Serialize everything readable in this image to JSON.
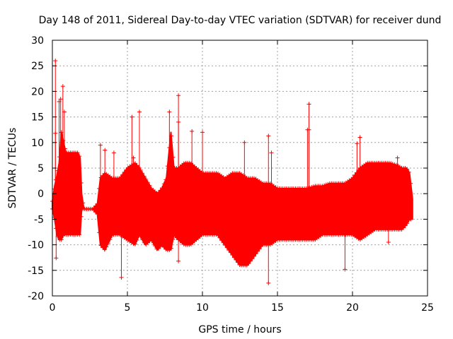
{
  "chart_data": {
    "type": "scatter",
    "title": "Day 148 of 2011, Sidereal Day-to-day VTEC variation (SDTVAR) for receiver dund",
    "xlabel": "GPS time / hours",
    "ylabel": "SDTVAR / TECUs",
    "xlim": [
      0,
      25
    ],
    "ylim": [
      -20,
      30
    ],
    "xticks": [
      0,
      5,
      10,
      15,
      20,
      25
    ],
    "yticks": [
      -20,
      -15,
      -10,
      -5,
      0,
      5,
      10,
      15,
      20,
      25,
      30
    ],
    "grid": true,
    "marker": "+",
    "series_color": "#ff0000",
    "envelope": {
      "x": [
        0.0,
        0.15,
        0.3,
        0.45,
        0.6,
        0.75,
        0.9,
        1.1,
        1.3,
        1.5,
        1.7,
        1.85,
        1.95,
        2.1,
        2.4,
        2.7,
        3.0,
        3.2,
        3.5,
        4.0,
        4.5,
        5.0,
        5.5,
        5.8,
        6.2,
        6.6,
        7.0,
        7.3,
        7.6,
        7.9,
        8.1,
        8.4,
        8.8,
        9.2,
        9.6,
        10.0,
        10.5,
        11.0,
        11.5,
        12.0,
        12.5,
        13.0,
        13.5,
        14.0,
        14.5,
        15.0,
        15.5,
        16.0,
        16.5,
        17.0,
        17.5,
        18.0,
        18.5,
        19.0,
        19.5,
        20.0,
        20.5,
        21.0,
        21.5,
        22.0,
        22.5,
        23.0,
        23.3,
        23.6,
        23.8,
        24.0
      ],
      "upper": [
        -1.5,
        1.5,
        3.5,
        6,
        12,
        10,
        8,
        8,
        8,
        8,
        8,
        7,
        0,
        -3,
        -3,
        -3,
        -2,
        3,
        4,
        3,
        3,
        5,
        6,
        5,
        3,
        1,
        0,
        1,
        3,
        12,
        5,
        5,
        6,
        6,
        5,
        4,
        4,
        4,
        3,
        4,
        4,
        3,
        3,
        2,
        2,
        1,
        1,
        1,
        1,
        1,
        1.5,
        1.5,
        2,
        2,
        2,
        3,
        5,
        6,
        6,
        6,
        6,
        5.5,
        5,
        5,
        4,
        -1
      ],
      "lower": [
        -3,
        -5,
        -8,
        -9,
        -9,
        -8,
        -8,
        -8,
        -8,
        -8,
        -8,
        -8,
        -3,
        -3,
        -3,
        -3,
        -4,
        -10,
        -11,
        -8,
        -8,
        -9,
        -10,
        -8,
        -10,
        -9,
        -11,
        -10,
        -11,
        -11,
        -8,
        -9,
        -10,
        -10,
        -9,
        -8,
        -8,
        -8,
        -10,
        -12,
        -14,
        -14,
        -12,
        -10,
        -10,
        -9,
        -9,
        -9,
        -9,
        -9,
        -9,
        -8,
        -8,
        -8,
        -8,
        -8,
        -9,
        -8,
        -7,
        -7,
        -7,
        -7,
        -7,
        -6,
        -5,
        -5
      ]
    },
    "outliers": [
      {
        "x": 0.2,
        "y": 26
      },
      {
        "x": 0.25,
        "y": -12.6
      },
      {
        "x": 0.45,
        "y": 18
      },
      {
        "x": 0.55,
        "y": 18.5
      },
      {
        "x": 0.7,
        "y": 21
      },
      {
        "x": 0.8,
        "y": 16
      },
      {
        "x": 0.2,
        "y": 11.8
      },
      {
        "x": 3.2,
        "y": 9.5
      },
      {
        "x": 3.5,
        "y": 8.5
      },
      {
        "x": 4.1,
        "y": 8
      },
      {
        "x": 4.6,
        "y": -16.4
      },
      {
        "x": 5.3,
        "y": 15
      },
      {
        "x": 5.4,
        "y": 7
      },
      {
        "x": 5.8,
        "y": 16
      },
      {
        "x": 7.8,
        "y": 16
      },
      {
        "x": 8.4,
        "y": 19.2
      },
      {
        "x": 8.4,
        "y": 14
      },
      {
        "x": 8.4,
        "y": -13.2
      },
      {
        "x": 9.3,
        "y": 12.2
      },
      {
        "x": 10.0,
        "y": 12
      },
      {
        "x": 12.8,
        "y": 10
      },
      {
        "x": 14.4,
        "y": 11.3
      },
      {
        "x": 14.4,
        "y": -17.5
      },
      {
        "x": 14.6,
        "y": 8
      },
      {
        "x": 17.1,
        "y": 17.5
      },
      {
        "x": 17.1,
        "y": 12.5
      },
      {
        "x": 17.0,
        "y": 12.5
      },
      {
        "x": 19.5,
        "y": -14.8
      },
      {
        "x": 20.3,
        "y": 9.8
      },
      {
        "x": 20.5,
        "y": 11
      },
      {
        "x": 22.4,
        "y": -9.5
      },
      {
        "x": 23.2,
        "y": -6.5
      },
      {
        "x": 23.0,
        "y": 7
      }
    ]
  }
}
